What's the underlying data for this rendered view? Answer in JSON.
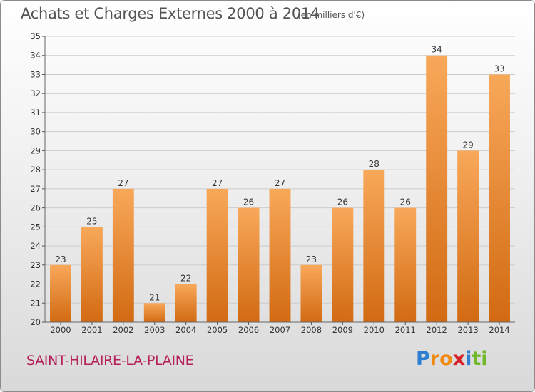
{
  "title": "Achats et Charges Externes 2000 à 2014",
  "subtitle": "(en milliers d'€)",
  "commune": "SAINT-HILAIRE-LA-PLAINE",
  "logo": {
    "text": "Proxiti",
    "letters": [
      {
        "ch": "P",
        "color": "#2e7fd1"
      },
      {
        "ch": "r",
        "color": "#f08a10"
      },
      {
        "ch": "o",
        "color": "#f08a10"
      },
      {
        "ch": "x",
        "color": "#d8202a"
      },
      {
        "ch": "i",
        "color": "#2e7fd1"
      },
      {
        "ch": "t",
        "color": "#72b82c"
      },
      {
        "ch": "i",
        "color": "#72b82c"
      }
    ]
  },
  "colors": {
    "bar_light": "#f8a85a",
    "bar_dark": "#d26a12",
    "grid": "#cccccc",
    "commune": "#b5205a"
  },
  "chart_data": {
    "type": "bar",
    "title": "Achats et Charges Externes 2000 à 2014",
    "subtitle": "(en milliers d'€)",
    "categories": [
      "2000",
      "2001",
      "2002",
      "2003",
      "2004",
      "2005",
      "2006",
      "2007",
      "2008",
      "2009",
      "2010",
      "2011",
      "2012",
      "2013",
      "2014"
    ],
    "values": [
      23,
      25,
      27,
      21,
      22,
      27,
      26,
      27,
      23,
      26,
      28,
      26,
      34,
      29,
      33
    ],
    "ylim": [
      20,
      35
    ],
    "yticks": [
      20,
      21,
      22,
      23,
      24,
      25,
      26,
      27,
      28,
      29,
      30,
      31,
      32,
      33,
      34,
      35
    ],
    "grid": true,
    "xlabel": "",
    "ylabel": ""
  }
}
